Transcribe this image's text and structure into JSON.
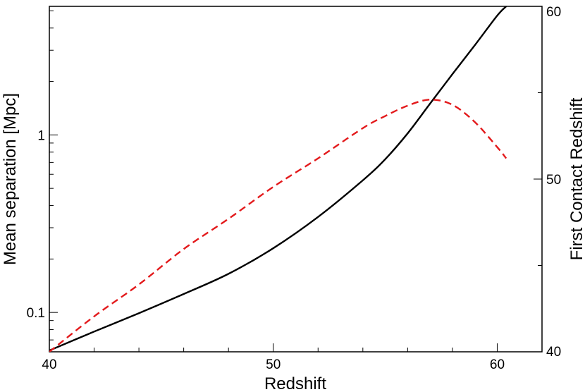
{
  "chart_data": {
    "type": "line",
    "title": "",
    "xlabel": "Redshift",
    "ylabel_left": "Mean separation [Mpc]",
    "ylabel_right": "First Contact Redshift",
    "xlim": [
      40,
      62
    ],
    "ylim_left": [
      0.06,
      5.3
    ],
    "yscale_left": "log",
    "ylim_right": [
      40,
      60
    ],
    "grid": false,
    "x_ticks": [
      {
        "value": 40,
        "label": "40"
      },
      {
        "value": 50,
        "label": "50"
      },
      {
        "value": 60,
        "label": "60"
      }
    ],
    "y_left_ticks": [
      {
        "value": 0.1,
        "label": "0.1"
      },
      {
        "value": 1,
        "label": "1"
      }
    ],
    "y_right_ticks": [
      {
        "value": 40,
        "label": "40"
      },
      {
        "value": 50,
        "label": "50"
      },
      {
        "value": 60,
        "label": "60"
      }
    ],
    "series": [
      {
        "axis": "left",
        "color": "#000000",
        "style": "solid",
        "x": [
          40,
          42,
          44,
          46,
          48,
          50,
          52,
          54,
          55,
          56,
          57,
          58,
          59,
          60,
          60.4
        ],
        "y": [
          0.061,
          0.078,
          0.099,
          0.127,
          0.165,
          0.23,
          0.345,
          0.555,
          0.73,
          1.02,
          1.5,
          2.2,
          3.2,
          4.7,
          5.3
        ]
      },
      {
        "axis": "right",
        "color": "#e31a1c",
        "style": "dashed",
        "x": [
          40,
          42,
          44,
          46,
          48,
          50,
          52,
          54,
          55,
          56,
          57,
          58,
          59,
          60,
          60.4
        ],
        "y": [
          40,
          42.05,
          43.9,
          45.95,
          47.7,
          49.55,
          51.2,
          52.95,
          53.65,
          54.25,
          54.6,
          54.3,
          53.3,
          51.85,
          51.2
        ]
      }
    ]
  }
}
